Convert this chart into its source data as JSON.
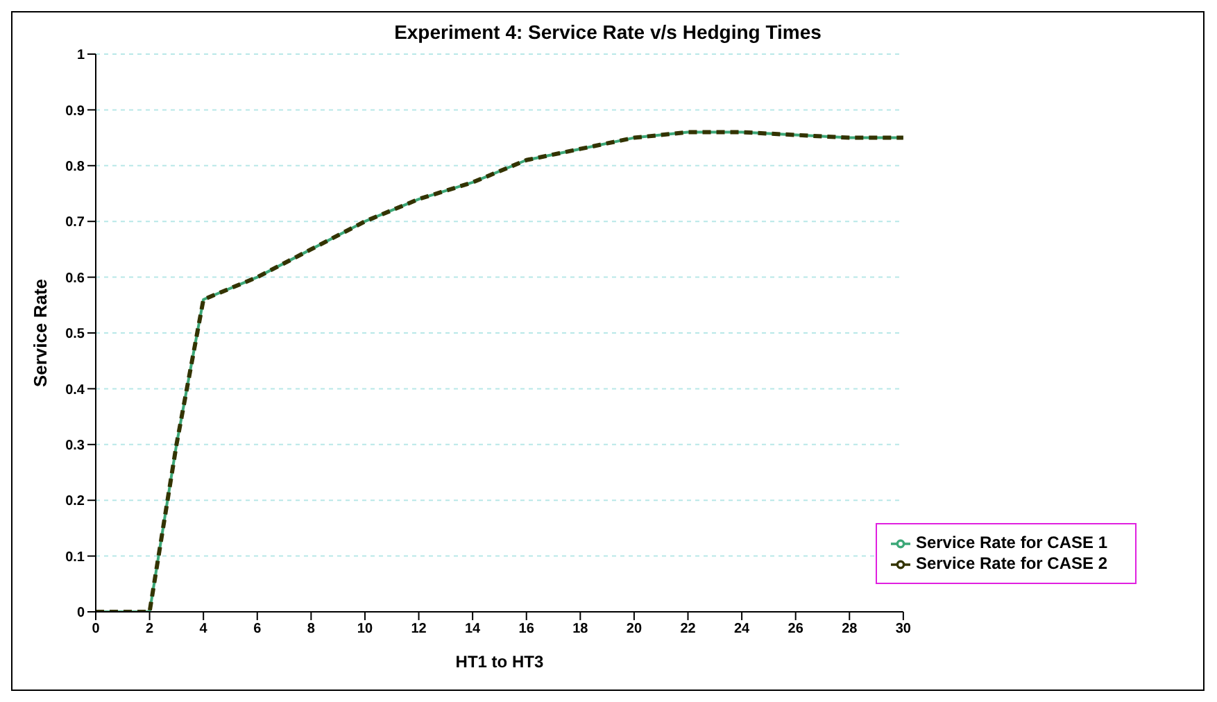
{
  "chart_data": {
    "type": "line",
    "title": "Experiment 4: Service Rate v/s Hedging Times",
    "xlabel": "HT1 to HT3",
    "ylabel": "Service Rate",
    "x": [
      0,
      2,
      3,
      4,
      5,
      6,
      8,
      10,
      12,
      14,
      16,
      18,
      20,
      22,
      24,
      26,
      28,
      30
    ],
    "series": [
      {
        "name": "Service Rate for CASE 1",
        "color": "#3ca878",
        "line_style": "solid",
        "values": [
          0,
          0,
          0.3,
          0.56,
          0.58,
          0.6,
          0.65,
          0.7,
          0.74,
          0.77,
          0.81,
          0.83,
          0.85,
          0.86,
          0.86,
          0.855,
          0.85,
          0.85
        ]
      },
      {
        "name": "Service Rate for CASE 2",
        "color": "#333300",
        "line_style": "dashed",
        "values": [
          0,
          0,
          0.3,
          0.56,
          0.58,
          0.6,
          0.65,
          0.7,
          0.74,
          0.77,
          0.81,
          0.83,
          0.85,
          0.86,
          0.86,
          0.855,
          0.85,
          0.85
        ]
      }
    ],
    "xlim": [
      0,
      30
    ],
    "xticks": [
      0,
      2,
      4,
      6,
      8,
      10,
      12,
      14,
      16,
      18,
      20,
      22,
      24,
      26,
      28,
      30
    ],
    "ylim": [
      0,
      1
    ],
    "yticks": [
      0,
      0.1,
      0.2,
      0.3,
      0.4,
      0.5,
      0.6,
      0.7,
      0.8,
      0.9,
      1
    ],
    "grid": "y",
    "legend": "bottom right",
    "marker": "none"
  }
}
